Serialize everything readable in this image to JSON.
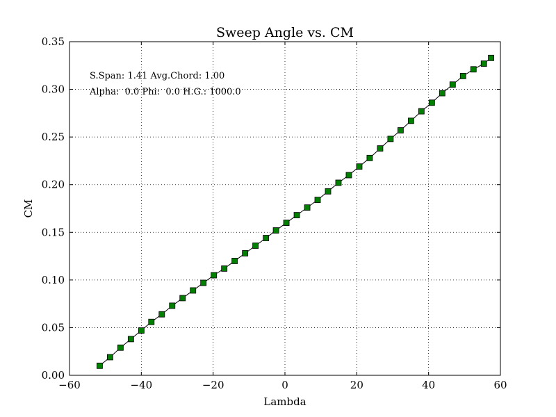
{
  "chart_data": {
    "type": "line",
    "title": "Sweep Angle vs. CM",
    "xlabel": "Lambda",
    "ylabel": "CM",
    "xlim": [
      -60,
      60
    ],
    "ylim": [
      0.0,
      0.35
    ],
    "grid": true,
    "x_ticks": [
      -60,
      -40,
      -20,
      0,
      20,
      40,
      60
    ],
    "x_tick_labels": [
      "−60",
      "−40",
      "−20",
      "0",
      "20",
      "40",
      "60"
    ],
    "y_ticks": [
      0.0,
      0.05,
      0.1,
      0.15,
      0.2,
      0.25,
      0.3,
      0.35
    ],
    "y_tick_labels": [
      "0.00",
      "0.05",
      "0.10",
      "0.15",
      "0.20",
      "0.25",
      "0.30",
      "0.35"
    ],
    "annotations": [
      "S.Span: 1.41 Avg.Chord: 1.00",
      "Alpha:  0.0 Phi:  0.0 H.G.: 1000.0"
    ],
    "series": [
      {
        "line_color": "#000000",
        "marker": "square",
        "marker_color": "#007f00",
        "x": [
          -51.6,
          -48.7,
          -45.8,
          -42.9,
          -40.0,
          -37.2,
          -34.3,
          -31.4,
          -28.5,
          -25.6,
          -22.7,
          -19.8,
          -16.9,
          -14.0,
          -11.1,
          -8.2,
          -5.3,
          -2.5,
          0.4,
          3.3,
          6.2,
          9.1,
          12.0,
          14.9,
          17.8,
          20.7,
          23.6,
          26.5,
          29.4,
          32.2,
          35.1,
          38.0,
          40.9,
          43.8,
          46.7,
          49.6,
          52.5,
          55.4,
          57.4
        ],
        "y": [
          0.01,
          0.019,
          0.029,
          0.038,
          0.047,
          0.056,
          0.064,
          0.073,
          0.081,
          0.089,
          0.097,
          0.105,
          0.112,
          0.12,
          0.128,
          0.136,
          0.144,
          0.152,
          0.16,
          0.168,
          0.176,
          0.184,
          0.193,
          0.202,
          0.21,
          0.219,
          0.228,
          0.238,
          0.248,
          0.257,
          0.267,
          0.277,
          0.286,
          0.296,
          0.305,
          0.314,
          0.321,
          0.327,
          0.333
        ]
      }
    ]
  }
}
